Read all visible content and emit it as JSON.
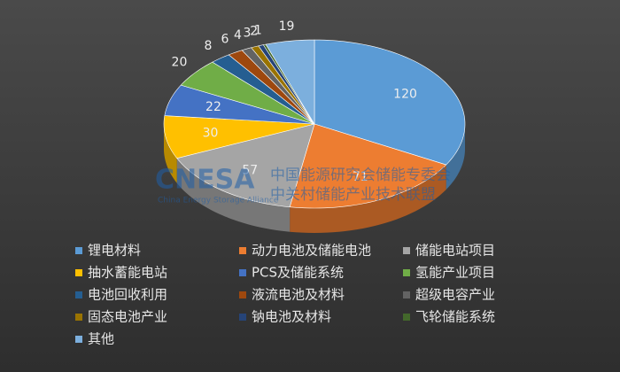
{
  "chart_data": {
    "type": "pie3d",
    "categories": [
      "锂电材料",
      "动力电池及储能电池",
      "储能电站项目",
      "抽水蓄能电站",
      "PCS及储能系统",
      "氢能产业项目",
      "电池回收利用",
      "液流电池及材料",
      "超级电容产业",
      "固态电池产业",
      "钠电池及材料",
      "飞轮储能系统",
      "其他"
    ],
    "values": [
      120,
      71,
      57,
      30,
      22,
      20,
      8,
      6,
      4,
      3,
      2,
      1,
      19
    ],
    "colors": [
      "#5B9BD5",
      "#ED7D31",
      "#A5A5A5",
      "#FFC000",
      "#4472C4",
      "#70AD47",
      "#255E91",
      "#9E480E",
      "#636363",
      "#997300",
      "#264478",
      "#43682B",
      "#7CAFDD"
    ],
    "legend": "bottom"
  },
  "watermark": {
    "logo": "CNESA",
    "line1": "中国能源研究会储能专委会",
    "line2": "中关村储能产业技术联盟",
    "sub": "China Energy Storage Alliance"
  }
}
